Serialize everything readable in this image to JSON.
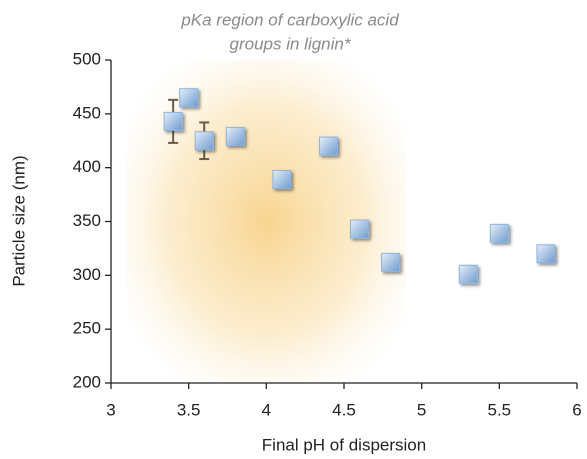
{
  "chart_data": {
    "type": "scatter",
    "annotation": [
      "pKa region of carboxylic acid",
      "groups in lignin*"
    ],
    "highlight_xrange": [
      3.1,
      4.9
    ],
    "x_label": "Final pH of dispersion",
    "y_label": "Particle size (nm)",
    "series": [
      {
        "color": "#8fb4dc",
        "x": [
          3.4,
          3.5,
          3.6,
          3.8,
          4.1,
          4.4,
          4.6,
          4.8,
          5.3,
          5.5,
          5.8
        ],
        "values": [
          443,
          465,
          425,
          429,
          389,
          420,
          343,
          312,
          301,
          339,
          320
        ],
        "errors": [
          20,
          null,
          17,
          null,
          null,
          null,
          null,
          null,
          null,
          null,
          null
        ]
      }
    ],
    "xlim": [
      3,
      6
    ],
    "xticks": [
      3,
      3.5,
      4,
      4.5,
      5,
      5.5,
      6
    ],
    "ylim": [
      200,
      500
    ],
    "yticks": [
      200,
      250,
      300,
      350,
      400,
      450,
      500
    ]
  }
}
